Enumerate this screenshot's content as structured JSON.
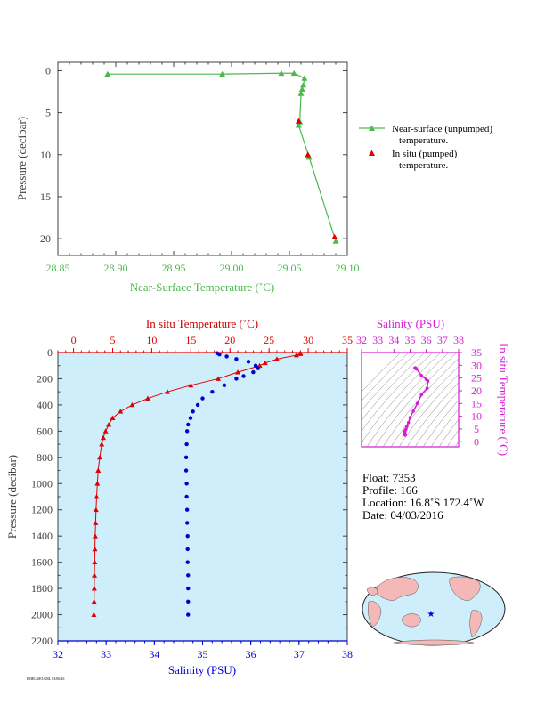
{
  "colors": {
    "green": "#4db84d",
    "red": "#e00000",
    "blue": "#0000cc",
    "magenta": "#d61cd6",
    "axis_dark": "#404040",
    "plot_bg": "#cdeefa",
    "land": "#f5b8b8",
    "ocean": "#cdeefa"
  },
  "chart_data": [
    {
      "id": "near-surface",
      "type": "line",
      "xlabel": "Near-Surface Temperature (˚C)",
      "ylabel": "Pressure (decibar)",
      "xlim": [
        28.85,
        29.1
      ],
      "ylim": [
        22,
        -1
      ],
      "x_ticks": [
        "28.85",
        "28.90",
        "28.95",
        "29.00",
        "29.05",
        "29.10"
      ],
      "y_ticks": [
        "0",
        "5",
        "10",
        "15",
        "20"
      ],
      "series": [
        {
          "name": "Near-surface (unpumped) temperature.",
          "name_lines": [
            "Near-surface (unpumped)",
            "temperature."
          ],
          "marker": "triangle",
          "color": "green",
          "x": [
            28.893,
            28.992,
            29.043,
            29.054,
            29.063,
            29.062,
            29.061,
            29.06,
            29.059,
            29.058,
            29.067,
            29.09
          ],
          "y": [
            0.4,
            0.4,
            0.3,
            0.3,
            0.9,
            1.7,
            2.2,
            2.7,
            6.1,
            6.5,
            10.3,
            20.3
          ]
        },
        {
          "name": "In situ (pumped) temperature.",
          "name_lines": [
            "In situ (pumped)",
            "temperature."
          ],
          "marker": "triangle",
          "color": "red",
          "x": [
            29.058,
            29.066,
            29.089
          ],
          "y": [
            6.0,
            10.0,
            19.8
          ]
        }
      ]
    },
    {
      "id": "profile",
      "type": "scatter",
      "ylabel": "Pressure (decibar)",
      "ylim": [
        2200,
        0
      ],
      "y_ticks": [
        "0",
        "200",
        "400",
        "600",
        "800",
        "1000",
        "1200",
        "1400",
        "1600",
        "1800",
        "2000",
        "2200"
      ],
      "temp_axis": {
        "label": "In situ Temperature (˚C)",
        "range": [
          -2,
          35
        ],
        "ticks": [
          "0",
          "5",
          "10",
          "15",
          "20",
          "25",
          "30",
          "35"
        ]
      },
      "sal_axis": {
        "label": "Salinity (PSU)",
        "range": [
          32,
          38
        ],
        "ticks": [
          "32",
          "33",
          "34",
          "35",
          "36",
          "37",
          "38"
        ]
      },
      "temperature": {
        "p": [
          5,
          10,
          20,
          50,
          80,
          100,
          150,
          200,
          250,
          300,
          350,
          400,
          450,
          500,
          550,
          600,
          650,
          700,
          800,
          900,
          1000,
          1100,
          1200,
          1300,
          1400,
          1500,
          1600,
          1700,
          1800,
          1900,
          2000
        ],
        "t": [
          29.0,
          29.0,
          28.5,
          26.0,
          24.5,
          23.8,
          21.0,
          18.5,
          15.0,
          12.0,
          9.5,
          7.5,
          6.0,
          5.0,
          4.5,
          4.1,
          3.8,
          3.6,
          3.35,
          3.15,
          3.05,
          2.95,
          2.88,
          2.82,
          2.77,
          2.73,
          2.7,
          2.67,
          2.65,
          2.63,
          2.6
        ]
      },
      "salinity": {
        "p": [
          5,
          15,
          30,
          50,
          70,
          100,
          120,
          150,
          180,
          200,
          250,
          300,
          350,
          400,
          450,
          500,
          550,
          600,
          700,
          800,
          900,
          1000,
          1100,
          1200,
          1300,
          1400,
          1500,
          1600,
          1700,
          1800,
          1900,
          2000
        ],
        "s": [
          35.3,
          35.35,
          35.5,
          35.7,
          35.95,
          36.1,
          36.15,
          36.05,
          35.85,
          35.7,
          35.45,
          35.2,
          35.0,
          34.9,
          34.8,
          34.75,
          34.7,
          34.68,
          34.67,
          34.66,
          34.66,
          34.67,
          34.67,
          34.68,
          34.68,
          34.69,
          34.69,
          34.69,
          34.7,
          34.7,
          34.7,
          34.7
        ]
      }
    },
    {
      "id": "ts-inset",
      "type": "scatter",
      "xlabel": "Salinity (PSU)",
      "ylabel": "In situ Temperature (˚C)",
      "xlim": [
        32,
        38
      ],
      "ylim": [
        -2,
        35
      ],
      "x_ticks": [
        "32",
        "33",
        "34",
        "35",
        "36",
        "37",
        "38"
      ],
      "y_ticks": [
        "0",
        "5",
        "10",
        "15",
        "20",
        "25",
        "30",
        "35"
      ]
    }
  ],
  "info": {
    "float": "Float:  7353",
    "profile": "Profile:  166",
    "location": "Location:  16.8˚S  172.4˚W",
    "date": "Date:  04/03/2016"
  },
  "footer": "PMEL/SIO/KRL 03/06/16"
}
